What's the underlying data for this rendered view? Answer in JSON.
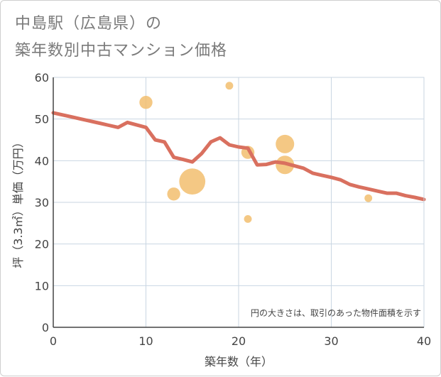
{
  "title": {
    "line1": "中島駅（広島県）の",
    "line2": "築年数別中古マンション価格"
  },
  "colors": {
    "line": "#d9705f",
    "bubble": "#f2be6e",
    "grid": "#c9d6e2",
    "axis": "#444444"
  },
  "chart_data": {
    "type": "scatter",
    "title": "中島駅（広島県）の築年数別中古マンション価格",
    "xlabel": "築年数（年）",
    "ylabel": "坪（3.3㎡）単価（万円）",
    "xlim": [
      0,
      40
    ],
    "ylim": [
      0,
      60
    ],
    "xticks": [
      0,
      10,
      20,
      30,
      40
    ],
    "yticks": [
      0,
      10,
      20,
      30,
      40,
      50,
      60
    ],
    "grid": true,
    "note": "円の大きさは、取引のあった物件面積を示す",
    "bubbles": [
      {
        "x": 10,
        "y": 54,
        "size": 2
      },
      {
        "x": 13,
        "y": 32,
        "size": 2
      },
      {
        "x": 15,
        "y": 35,
        "size": 8
      },
      {
        "x": 19,
        "y": 58,
        "size": 0.7
      },
      {
        "x": 21,
        "y": 42,
        "size": 2
      },
      {
        "x": 21,
        "y": 26,
        "size": 0.7
      },
      {
        "x": 25,
        "y": 44,
        "size": 4
      },
      {
        "x": 25,
        "y": 39,
        "size": 4
      },
      {
        "x": 34,
        "y": 31,
        "size": 0.7
      }
    ],
    "series": [
      {
        "name": "trend",
        "type": "line",
        "x": [
          0,
          1,
          2,
          3,
          4,
          5,
          6,
          7,
          8,
          9,
          10,
          11,
          12,
          13,
          14,
          15,
          16,
          17,
          18,
          19,
          20,
          21,
          22,
          23,
          24,
          25,
          26,
          27,
          28,
          29,
          30,
          31,
          32,
          33,
          34,
          35,
          36,
          37,
          38,
          39,
          40
        ],
        "y": [
          51.5,
          51.0,
          50.5,
          50.0,
          49.5,
          49.0,
          48.5,
          48.0,
          49.2,
          48.6,
          48.0,
          45.0,
          44.5,
          40.8,
          40.3,
          39.7,
          41.7,
          44.5,
          45.5,
          43.8,
          43.3,
          43.0,
          39.0,
          39.1,
          39.7,
          39.4,
          38.8,
          38.2,
          37.0,
          36.5,
          36.0,
          35.4,
          34.3,
          33.7,
          33.2,
          32.7,
          32.2,
          32.2,
          31.6,
          31.2,
          30.7
        ]
      }
    ]
  }
}
